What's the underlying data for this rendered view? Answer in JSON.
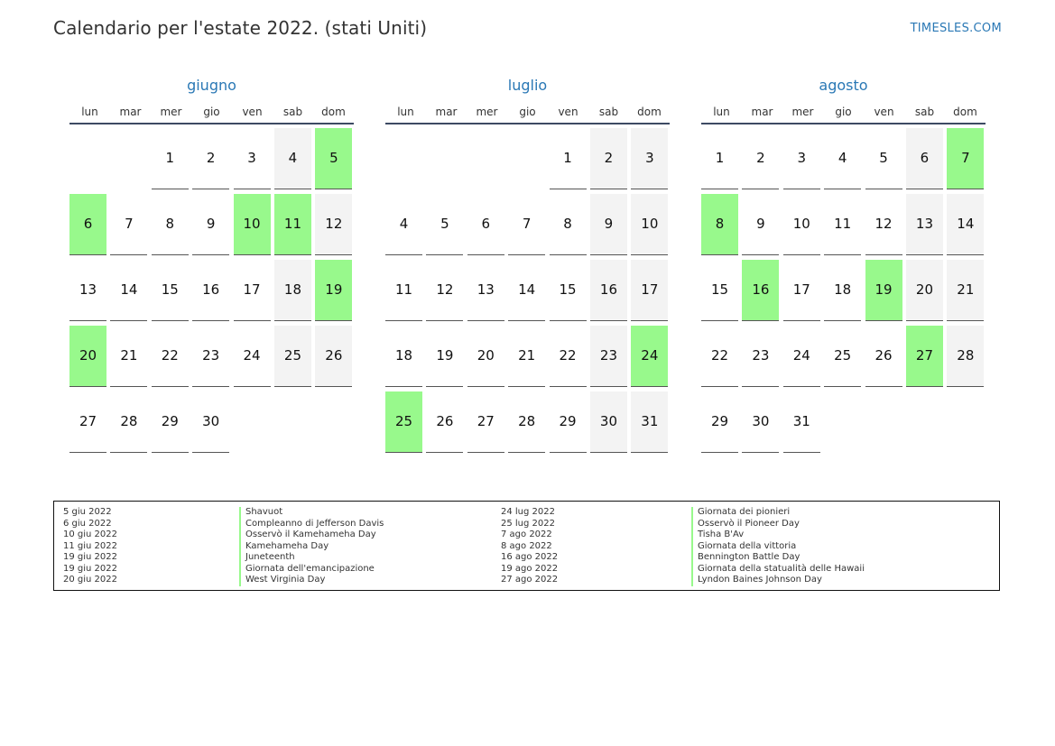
{
  "header": {
    "title": "Calendario per l'estate 2022. (stati Uniti)",
    "site": "TIMESLES.COM"
  },
  "weekdays": [
    "lun",
    "mar",
    "mer",
    "gio",
    "ven",
    "sab",
    "dom"
  ],
  "months": [
    {
      "name": "giugno",
      "cells": [
        {
          "d": "",
          "t": "empty"
        },
        {
          "d": "",
          "t": "empty"
        },
        {
          "d": "1",
          "t": ""
        },
        {
          "d": "2",
          "t": ""
        },
        {
          "d": "3",
          "t": ""
        },
        {
          "d": "4",
          "t": "wk"
        },
        {
          "d": "5",
          "t": "hol"
        },
        {
          "d": "6",
          "t": "hol"
        },
        {
          "d": "7",
          "t": ""
        },
        {
          "d": "8",
          "t": ""
        },
        {
          "d": "9",
          "t": ""
        },
        {
          "d": "10",
          "t": "hol"
        },
        {
          "d": "11",
          "t": "hol"
        },
        {
          "d": "12",
          "t": "wk"
        },
        {
          "d": "13",
          "t": ""
        },
        {
          "d": "14",
          "t": ""
        },
        {
          "d": "15",
          "t": ""
        },
        {
          "d": "16",
          "t": ""
        },
        {
          "d": "17",
          "t": ""
        },
        {
          "d": "18",
          "t": "wk"
        },
        {
          "d": "19",
          "t": "hol"
        },
        {
          "d": "20",
          "t": "hol"
        },
        {
          "d": "21",
          "t": ""
        },
        {
          "d": "22",
          "t": ""
        },
        {
          "d": "23",
          "t": ""
        },
        {
          "d": "24",
          "t": ""
        },
        {
          "d": "25",
          "t": "wk"
        },
        {
          "d": "26",
          "t": "wk"
        },
        {
          "d": "27",
          "t": ""
        },
        {
          "d": "28",
          "t": ""
        },
        {
          "d": "29",
          "t": ""
        },
        {
          "d": "30",
          "t": ""
        }
      ]
    },
    {
      "name": "luglio",
      "cells": [
        {
          "d": "",
          "t": "empty"
        },
        {
          "d": "",
          "t": "empty"
        },
        {
          "d": "",
          "t": "empty"
        },
        {
          "d": "",
          "t": "empty"
        },
        {
          "d": "1",
          "t": ""
        },
        {
          "d": "2",
          "t": "wk"
        },
        {
          "d": "3",
          "t": "wk"
        },
        {
          "d": "4",
          "t": ""
        },
        {
          "d": "5",
          "t": ""
        },
        {
          "d": "6",
          "t": ""
        },
        {
          "d": "7",
          "t": ""
        },
        {
          "d": "8",
          "t": ""
        },
        {
          "d": "9",
          "t": "wk"
        },
        {
          "d": "10",
          "t": "wk"
        },
        {
          "d": "11",
          "t": ""
        },
        {
          "d": "12",
          "t": ""
        },
        {
          "d": "13",
          "t": ""
        },
        {
          "d": "14",
          "t": ""
        },
        {
          "d": "15",
          "t": ""
        },
        {
          "d": "16",
          "t": "wk"
        },
        {
          "d": "17",
          "t": "wk"
        },
        {
          "d": "18",
          "t": ""
        },
        {
          "d": "19",
          "t": ""
        },
        {
          "d": "20",
          "t": ""
        },
        {
          "d": "21",
          "t": ""
        },
        {
          "d": "22",
          "t": ""
        },
        {
          "d": "23",
          "t": "wk"
        },
        {
          "d": "24",
          "t": "hol"
        },
        {
          "d": "25",
          "t": "hol"
        },
        {
          "d": "26",
          "t": ""
        },
        {
          "d": "27",
          "t": ""
        },
        {
          "d": "28",
          "t": ""
        },
        {
          "d": "29",
          "t": ""
        },
        {
          "d": "30",
          "t": "wk"
        },
        {
          "d": "31",
          "t": "wk"
        }
      ]
    },
    {
      "name": "agosto",
      "cells": [
        {
          "d": "1",
          "t": ""
        },
        {
          "d": "2",
          "t": ""
        },
        {
          "d": "3",
          "t": ""
        },
        {
          "d": "4",
          "t": ""
        },
        {
          "d": "5",
          "t": ""
        },
        {
          "d": "6",
          "t": "wk"
        },
        {
          "d": "7",
          "t": "hol"
        },
        {
          "d": "8",
          "t": "hol"
        },
        {
          "d": "9",
          "t": ""
        },
        {
          "d": "10",
          "t": ""
        },
        {
          "d": "11",
          "t": ""
        },
        {
          "d": "12",
          "t": ""
        },
        {
          "d": "13",
          "t": "wk"
        },
        {
          "d": "14",
          "t": "wk"
        },
        {
          "d": "15",
          "t": ""
        },
        {
          "d": "16",
          "t": "hol"
        },
        {
          "d": "17",
          "t": ""
        },
        {
          "d": "18",
          "t": ""
        },
        {
          "d": "19",
          "t": "hol"
        },
        {
          "d": "20",
          "t": "wk"
        },
        {
          "d": "21",
          "t": "wk"
        },
        {
          "d": "22",
          "t": ""
        },
        {
          "d": "23",
          "t": ""
        },
        {
          "d": "24",
          "t": ""
        },
        {
          "d": "25",
          "t": ""
        },
        {
          "d": "26",
          "t": ""
        },
        {
          "d": "27",
          "t": "hol"
        },
        {
          "d": "28",
          "t": "wk"
        },
        {
          "d": "29",
          "t": ""
        },
        {
          "d": "30",
          "t": ""
        },
        {
          "d": "31",
          "t": ""
        }
      ]
    }
  ],
  "holidays_left": [
    {
      "date": "5 giu 2022",
      "name": "Shavuot"
    },
    {
      "date": "6 giu 2022",
      "name": "Compleanno di Jefferson Davis"
    },
    {
      "date": "10 giu 2022",
      "name": "Osservò il Kamehameha Day"
    },
    {
      "date": "11 giu 2022",
      "name": "Kamehameha Day"
    },
    {
      "date": "19 giu 2022",
      "name": "Juneteenth"
    },
    {
      "date": "19 giu 2022",
      "name": "Giornata dell'emancipazione"
    },
    {
      "date": "20 giu 2022",
      "name": "West Virginia Day"
    }
  ],
  "holidays_right": [
    {
      "date": "24 lug 2022",
      "name": "Giornata dei pionieri"
    },
    {
      "date": "25 lug 2022",
      "name": "Osservò il Pioneer Day"
    },
    {
      "date": "7 ago 2022",
      "name": "Tisha B'Av"
    },
    {
      "date": "8 ago 2022",
      "name": "Giornata della vittoria"
    },
    {
      "date": "16 ago 2022",
      "name": "Bennington Battle Day"
    },
    {
      "date": "19 ago 2022",
      "name": "Giornata della statualità delle Hawaii"
    },
    {
      "date": "27 ago 2022",
      "name": "Lyndon Baines Johnson Day"
    }
  ],
  "colors": {
    "holiday": "#98f98c",
    "weekend": "#f3f3f3",
    "accent": "#2a78b5"
  }
}
